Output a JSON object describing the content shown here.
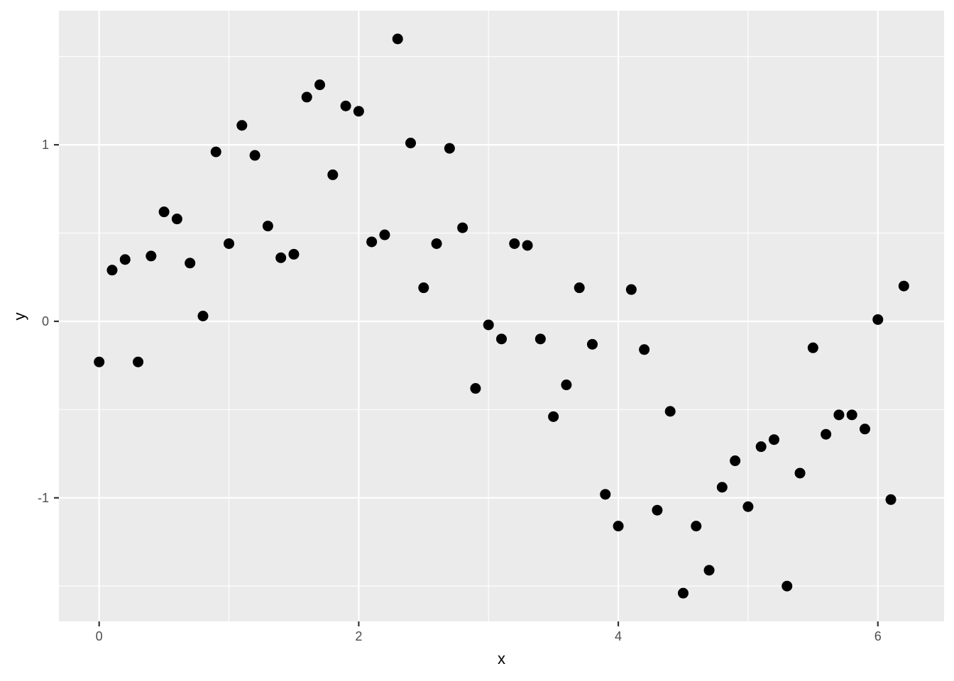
{
  "figure": {
    "background": "#FFFFFF",
    "panel_background": "#EBEBEB",
    "grid_color": "#FFFFFF",
    "point_color": "#000000",
    "tick_mark_color": "#333333",
    "tick_label_color": "#4D4D4D",
    "axis_title_color": "#000000"
  },
  "chart_data": {
    "type": "scatter",
    "title": "",
    "xlabel": "x",
    "ylabel": "y",
    "legend": "none",
    "grid": true,
    "x_major_ticks": [
      0,
      2,
      4,
      6
    ],
    "x_minor_gridlines": [
      1,
      3,
      5
    ],
    "y_major_ticks": [
      -1,
      0,
      1
    ],
    "y_minor_gridlines": [
      -1.5,
      -0.5,
      0.5,
      1.5
    ],
    "xlim": [
      -0.31,
      6.51
    ],
    "ylim": [
      -1.7,
      1.76
    ],
    "points": [
      [
        0.0,
        -0.23
      ],
      [
        0.1,
        0.29
      ],
      [
        0.2,
        0.35
      ],
      [
        0.3,
        -0.23
      ],
      [
        0.4,
        0.37
      ],
      [
        0.5,
        0.62
      ],
      [
        0.6,
        0.58
      ],
      [
        0.7,
        0.33
      ],
      [
        0.8,
        0.03
      ],
      [
        0.9,
        0.96
      ],
      [
        1.0,
        0.44
      ],
      [
        1.1,
        1.11
      ],
      [
        1.2,
        0.94
      ],
      [
        1.3,
        0.54
      ],
      [
        1.4,
        0.36
      ],
      [
        1.5,
        0.38
      ],
      [
        1.6,
        1.27
      ],
      [
        1.7,
        1.34
      ],
      [
        1.8,
        0.83
      ],
      [
        1.9,
        1.22
      ],
      [
        2.0,
        1.19
      ],
      [
        2.1,
        0.45
      ],
      [
        2.2,
        0.49
      ],
      [
        2.3,
        1.6
      ],
      [
        2.4,
        1.01
      ],
      [
        2.5,
        0.19
      ],
      [
        2.6,
        0.44
      ],
      [
        2.7,
        0.98
      ],
      [
        2.8,
        0.53
      ],
      [
        2.9,
        -0.38
      ],
      [
        3.0,
        -0.02
      ],
      [
        3.1,
        -0.1
      ],
      [
        3.2,
        0.44
      ],
      [
        3.3,
        0.43
      ],
      [
        3.4,
        -0.1
      ],
      [
        3.5,
        -0.54
      ],
      [
        3.6,
        -0.36
      ],
      [
        3.7,
        0.19
      ],
      [
        3.8,
        -0.13
      ],
      [
        3.9,
        -0.98
      ],
      [
        4.0,
        -1.16
      ],
      [
        4.1,
        0.18
      ],
      [
        4.2,
        -0.16
      ],
      [
        4.3,
        -1.07
      ],
      [
        4.4,
        -0.51
      ],
      [
        4.5,
        -1.54
      ],
      [
        4.6,
        -1.16
      ],
      [
        4.7,
        -1.41
      ],
      [
        4.8,
        -0.94
      ],
      [
        4.9,
        -0.79
      ],
      [
        5.0,
        -1.05
      ],
      [
        5.1,
        -0.71
      ],
      [
        5.2,
        -0.67
      ],
      [
        5.3,
        -1.5
      ],
      [
        5.4,
        -0.86
      ],
      [
        5.5,
        -0.15
      ],
      [
        5.6,
        -0.64
      ],
      [
        5.7,
        -0.53
      ],
      [
        5.8,
        -0.53
      ],
      [
        5.9,
        -0.61
      ],
      [
        6.0,
        0.01
      ],
      [
        6.1,
        -1.01
      ],
      [
        6.2,
        0.2
      ]
    ]
  }
}
